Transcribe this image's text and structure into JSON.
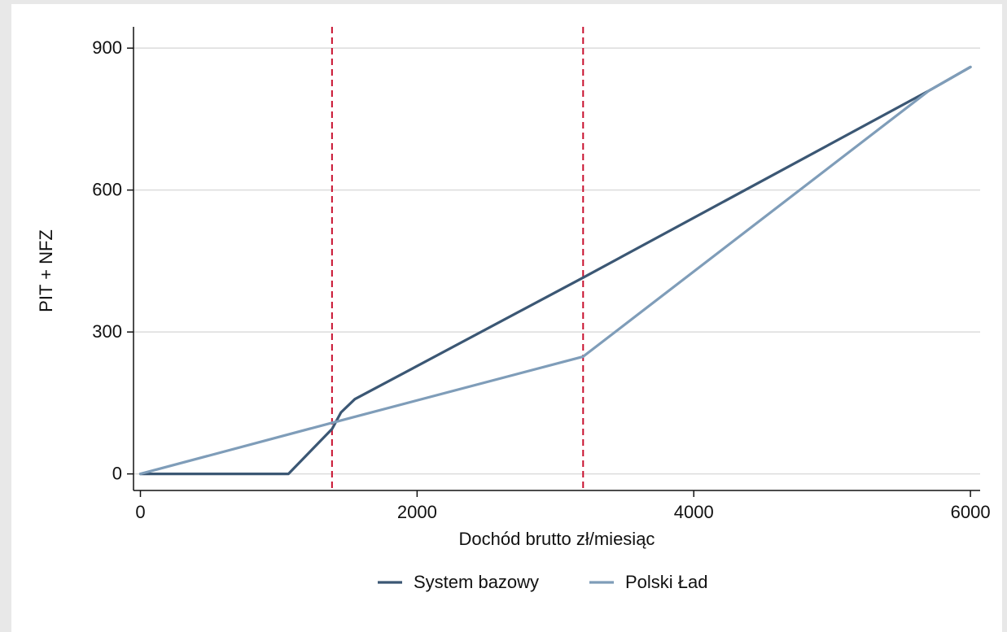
{
  "chart_data": {
    "type": "line",
    "title": "",
    "xlabel": "Dochód brutto zł/miesiąc",
    "ylabel": "PIT + NFZ",
    "xlim": [
      -50,
      6070
    ],
    "ylim": [
      -35,
      945
    ],
    "xticks": [
      0,
      2000,
      4000,
      6000
    ],
    "yticks": [
      0,
      300,
      600,
      900
    ],
    "grid": "horizontal",
    "legend_position": "bottom",
    "reference_lines": [
      {
        "axis": "x",
        "value": 1385,
        "color": "#c8102e",
        "style": "dashed"
      },
      {
        "axis": "x",
        "value": 3200,
        "color": "#c8102e",
        "style": "dashed"
      }
    ],
    "series": [
      {
        "name": "System bazowy",
        "color": "#3b5774",
        "points": [
          [
            0,
            0
          ],
          [
            1070,
            0
          ],
          [
            1385,
            95
          ],
          [
            1450,
            130
          ],
          [
            1550,
            158
          ],
          [
            3200,
            415
          ],
          [
            5700,
            810
          ],
          [
            6000,
            860
          ]
        ]
      },
      {
        "name": "Polski Ład",
        "color": "#7f9db9",
        "points": [
          [
            0,
            0
          ],
          [
            1385,
            108
          ],
          [
            3200,
            248
          ],
          [
            5700,
            810
          ],
          [
            6000,
            860
          ]
        ]
      }
    ]
  }
}
